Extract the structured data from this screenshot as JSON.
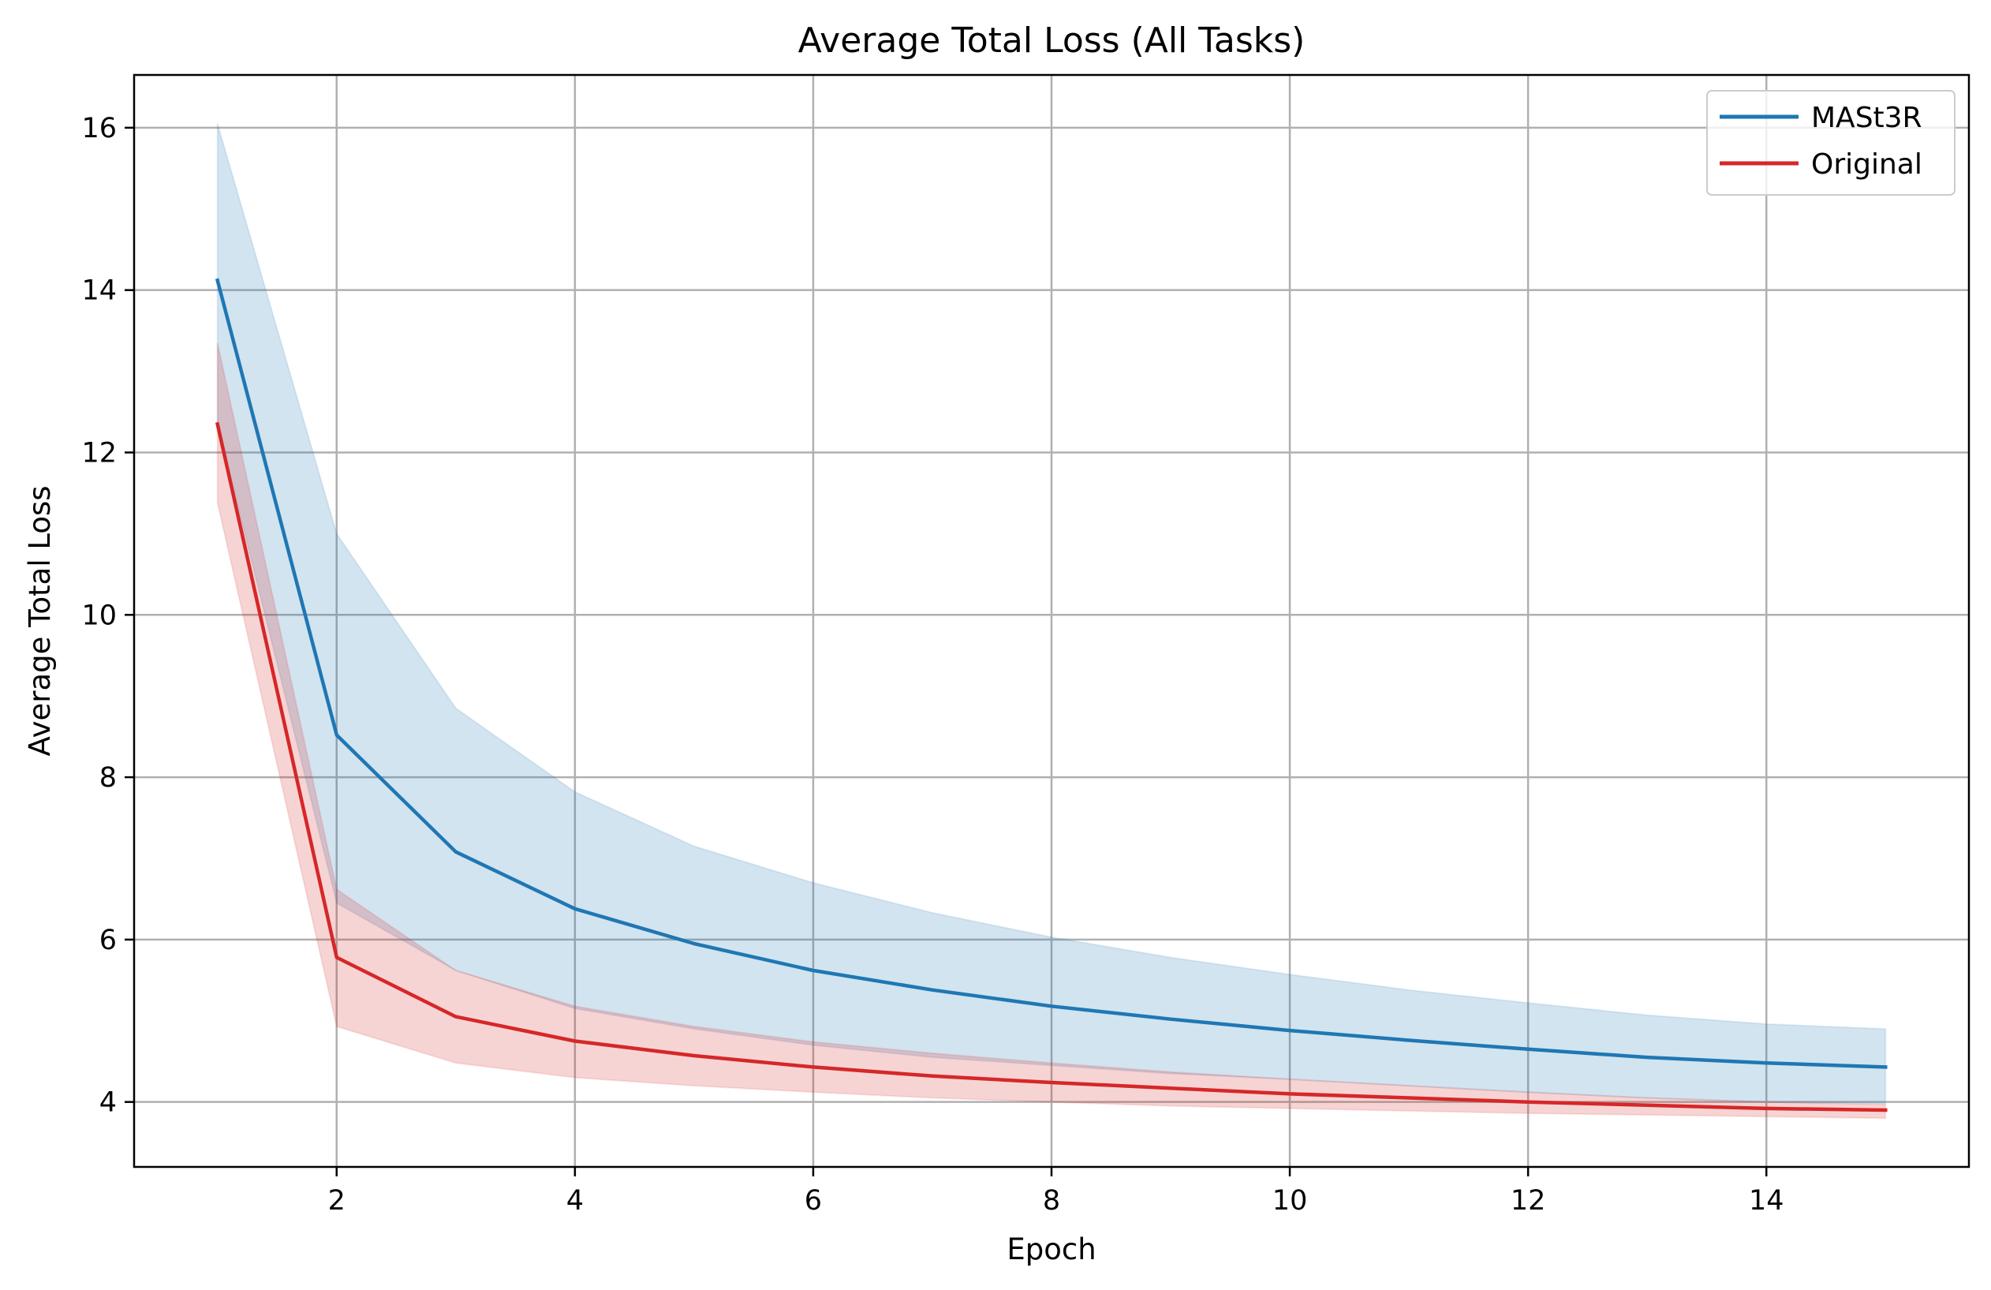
{
  "chart_data": {
    "type": "line",
    "title": "Average Total Loss (All Tasks)",
    "xlabel": "Epoch",
    "ylabel": "Average Total Loss",
    "xlim": [
      0.3,
      15.7
    ],
    "ylim": [
      3.2,
      16.65
    ],
    "x_ticks": [
      2,
      4,
      6,
      8,
      10,
      12,
      14
    ],
    "y_ticks": [
      4,
      6,
      8,
      10,
      12,
      14,
      16
    ],
    "grid": true,
    "legend_position": "top-right",
    "x": [
      1,
      2,
      3,
      4,
      5,
      6,
      7,
      8,
      9,
      10,
      11,
      12,
      13,
      14,
      15
    ],
    "series": [
      {
        "name": "MASt3R",
        "color": "#1f77b4",
        "band_color": "#1f77b4",
        "values": [
          14.12,
          8.52,
          7.08,
          6.38,
          5.95,
          5.62,
          5.38,
          5.18,
          5.02,
          4.88,
          4.76,
          4.65,
          4.55,
          4.48,
          4.43
        ],
        "upper": [
          16.05,
          11.0,
          8.85,
          7.82,
          7.15,
          6.7,
          6.33,
          6.03,
          5.78,
          5.57,
          5.38,
          5.22,
          5.07,
          4.96,
          4.9
        ],
        "lower": [
          12.35,
          6.45,
          5.62,
          5.15,
          4.9,
          4.7,
          4.55,
          4.45,
          4.35,
          4.28,
          4.2,
          4.12,
          4.05,
          4.0,
          3.98
        ]
      },
      {
        "name": "Original",
        "color": "#d62728",
        "band_color": "#d62728",
        "values": [
          12.35,
          5.78,
          5.05,
          4.75,
          4.57,
          4.43,
          4.32,
          4.24,
          4.17,
          4.1,
          4.05,
          4.0,
          3.96,
          3.92,
          3.9
        ],
        "upper": [
          13.35,
          6.62,
          5.62,
          5.18,
          4.93,
          4.74,
          4.6,
          4.48,
          4.37,
          4.28,
          4.2,
          4.12,
          4.05,
          4.0,
          3.97
        ],
        "lower": [
          11.38,
          4.93,
          4.48,
          4.3,
          4.2,
          4.12,
          4.05,
          4.0,
          3.95,
          3.92,
          3.89,
          3.86,
          3.84,
          3.82,
          3.8
        ]
      }
    ]
  }
}
